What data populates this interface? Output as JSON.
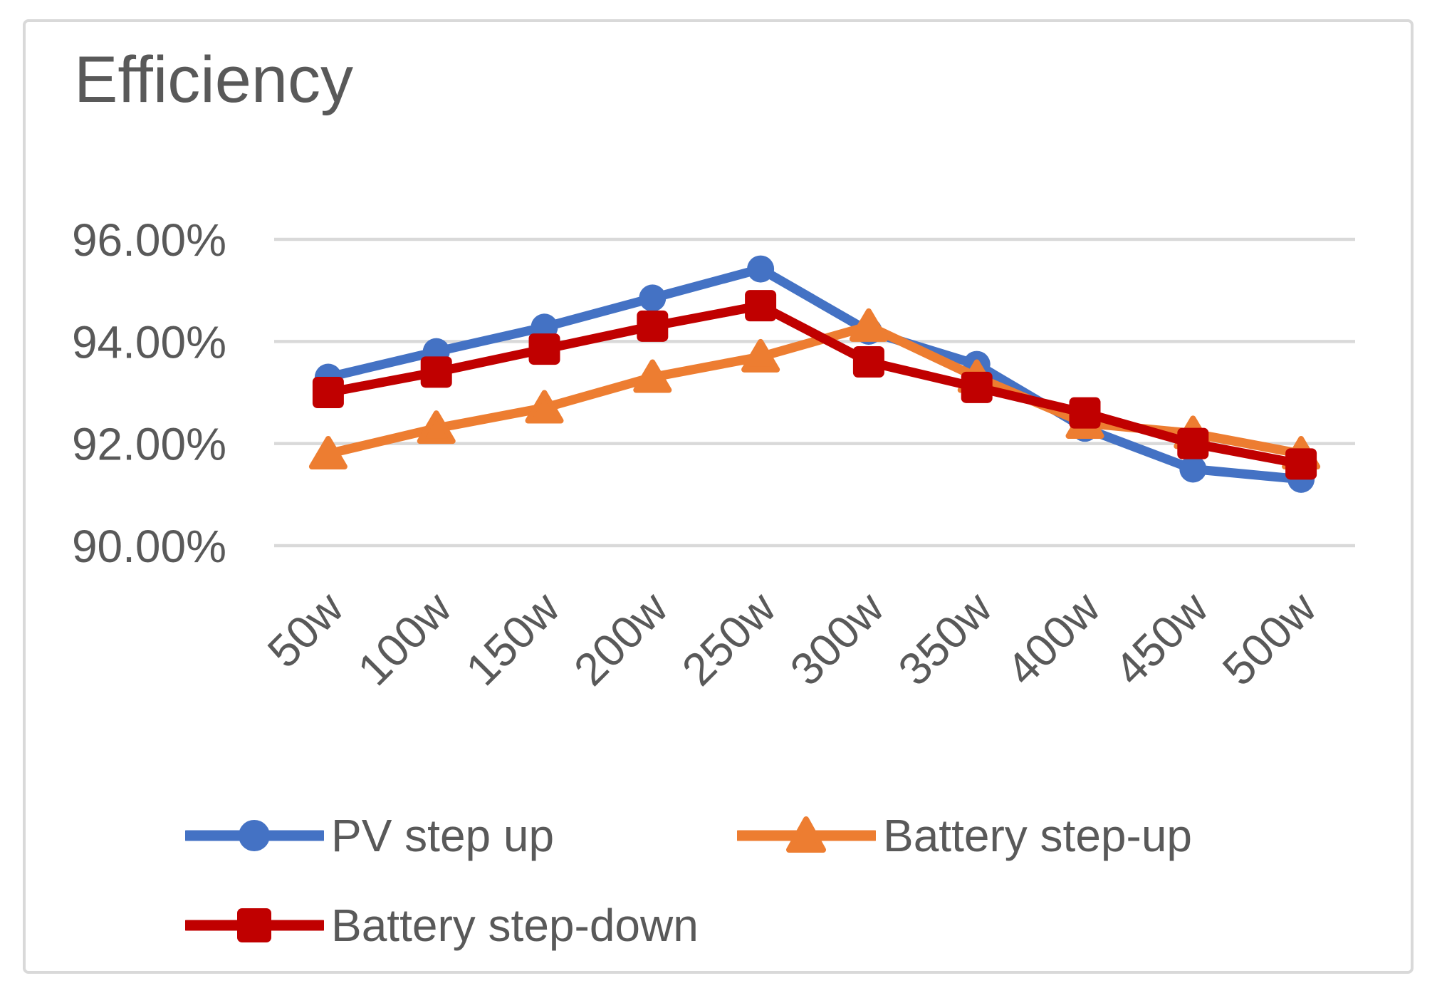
{
  "chart_data": {
    "type": "line",
    "title": "Efficiency",
    "categories": [
      "50w",
      "100w",
      "150w",
      "200w",
      "250w",
      "300w",
      "350w",
      "400w",
      "450w",
      "500w"
    ],
    "series": [
      {
        "name": "PV step up",
        "marker": "circle",
        "color": "#4472C4",
        "values": [
          93.3,
          93.8,
          94.28,
          94.85,
          95.42,
          94.2,
          93.55,
          92.3,
          91.5,
          91.3
        ]
      },
      {
        "name": "Battery step-up",
        "marker": "triangle",
        "color": "#ED7D31",
        "values": [
          91.8,
          92.3,
          92.7,
          93.3,
          93.7,
          94.3,
          93.3,
          92.4,
          92.2,
          91.8
        ]
      },
      {
        "name": "Battery step-down",
        "marker": "square",
        "color": "#C00000",
        "values": [
          93.0,
          93.4,
          93.85,
          94.3,
          94.7,
          93.6,
          93.1,
          92.6,
          92.0,
          91.6
        ]
      }
    ],
    "ylim": [
      90,
      96
    ],
    "ytick_step": 2,
    "ytick_labels": [
      "96.00%",
      "94.00%",
      "92.00%",
      "90.00%"
    ],
    "ytick_values": [
      96,
      94,
      92,
      90
    ],
    "grid": true,
    "legend_position": "bottom"
  },
  "style": {
    "grid_color": "#D9D9D9",
    "border_color": "#D9D9D9",
    "text_color": "#595959"
  }
}
